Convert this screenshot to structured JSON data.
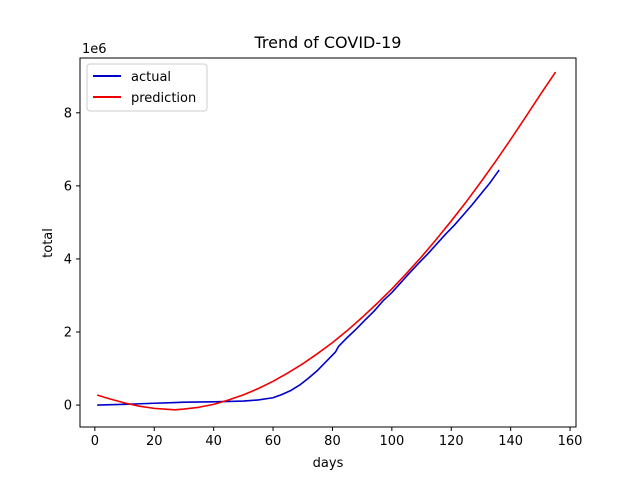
{
  "chart_data": {
    "type": "line",
    "title": "Trend of COVID-19",
    "xlabel": "days",
    "ylabel": "total",
    "y_offset_label": "1e6",
    "xlim": [
      -5,
      162
    ],
    "ylim": [
      -0.6,
      9.5
    ],
    "x_ticks": [
      0,
      20,
      40,
      60,
      80,
      100,
      120,
      140,
      160
    ],
    "y_ticks": [
      0,
      2,
      4,
      6,
      8
    ],
    "y_tick_labels": [
      "0",
      "2",
      "4",
      "6",
      "8"
    ],
    "legend_position": "upper-left",
    "grid": false,
    "series": [
      {
        "name": "actual",
        "color": "#0000cc",
        "x": [
          1,
          10,
          20,
          27,
          30,
          40,
          50,
          55,
          60,
          63,
          66,
          69,
          72,
          75,
          78,
          81,
          82,
          85,
          88,
          91,
          94,
          97,
          100,
          103,
          106,
          109,
          112,
          115,
          118,
          121,
          124,
          127,
          130,
          133,
          136
        ],
        "y": [
          0.0,
          0.02,
          0.05,
          0.07,
          0.08,
          0.09,
          0.11,
          0.14,
          0.2,
          0.29,
          0.4,
          0.55,
          0.74,
          0.95,
          1.2,
          1.45,
          1.6,
          1.85,
          2.08,
          2.33,
          2.57,
          2.85,
          3.08,
          3.35,
          3.62,
          3.88,
          4.13,
          4.4,
          4.67,
          4.92,
          5.2,
          5.48,
          5.78,
          6.08,
          6.42
        ]
      },
      {
        "name": "prediction",
        "color": "#ee0000",
        "x": [
          1,
          5,
          10,
          15,
          20,
          25,
          27,
          30,
          35,
          40,
          45,
          50,
          55,
          60,
          65,
          70,
          75,
          80,
          85,
          90,
          95,
          100,
          105,
          110,
          115,
          120,
          125,
          130,
          135,
          140,
          145,
          150,
          155
        ],
        "y": [
          0.27,
          0.17,
          0.06,
          -0.03,
          -0.09,
          -0.12,
          -0.13,
          -0.11,
          -0.06,
          0.02,
          0.14,
          0.28,
          0.45,
          0.65,
          0.88,
          1.13,
          1.41,
          1.71,
          2.04,
          2.4,
          2.78,
          3.18,
          3.61,
          4.06,
          4.54,
          5.04,
          5.56,
          6.11,
          6.68,
          7.27,
          7.88,
          8.5,
          9.1
        ]
      }
    ]
  }
}
